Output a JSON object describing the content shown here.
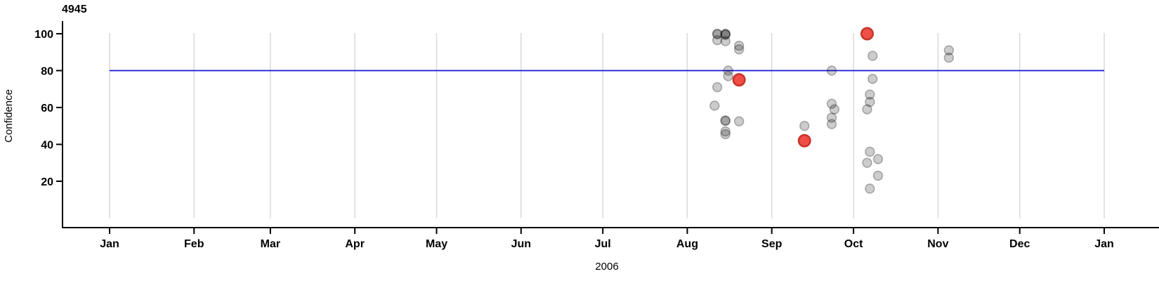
{
  "page": {
    "background": "#ffffff"
  },
  "chart_data": {
    "type": "scatter",
    "title": "4945",
    "xlabel": "2006",
    "ylabel": "Confidence",
    "x_axis": {
      "months": [
        {
          "label": "Jan",
          "day": 1
        },
        {
          "label": "Feb",
          "day": 32
        },
        {
          "label": "Mar",
          "day": 60
        },
        {
          "label": "Apr",
          "day": 91
        },
        {
          "label": "May",
          "day": 121
        },
        {
          "label": "Jun",
          "day": 152
        },
        {
          "label": "Jul",
          "day": 182
        },
        {
          "label": "Aug",
          "day": 213
        },
        {
          "label": "Sep",
          "day": 244
        },
        {
          "label": "Oct",
          "day": 274
        },
        {
          "label": "Nov",
          "day": 305
        },
        {
          "label": "Dec",
          "day": 335
        },
        {
          "label": "Jan",
          "day": 366
        }
      ],
      "range_days": [
        1,
        366
      ]
    },
    "y_axis": {
      "ticks": [
        20,
        40,
        60,
        80,
        100
      ],
      "ylim": [
        -5,
        106
      ],
      "grid_value_range": [
        0,
        100
      ]
    },
    "grid": {
      "color": "#d9d9d9",
      "orientation": "vertical"
    },
    "axis_color": "#000000",
    "reference_line": {
      "value": 80,
      "color": "#1414dd",
      "start_day": 1,
      "end_day": 366
    },
    "point_styles": {
      "gray": {
        "fill": "rgba(0,0,0,0.20)",
        "stroke": "rgba(0,0,0,0.28)",
        "radius": 6.4,
        "stroke_width": 1.6
      },
      "red": {
        "fill": "rgba(238,60,50,0.9)",
        "stroke": "#c8352b",
        "radius": 8.2,
        "stroke_width": 2.6
      }
    },
    "points": [
      {
        "date": "Aug 12",
        "day": 224,
        "value": 100,
        "color": "gray",
        "stack": 2
      },
      {
        "date": "Aug 15",
        "day": 227,
        "value": 100,
        "color": "gray",
        "stack": 3
      },
      {
        "date": "Aug 12",
        "day": 224,
        "value": 96.5,
        "color": "gray",
        "stack": 1
      },
      {
        "date": "Aug 15",
        "day": 227,
        "value": 96,
        "color": "gray",
        "stack": 1
      },
      {
        "date": "Aug 20",
        "day": 232,
        "value": 93.5,
        "color": "gray",
        "stack": 1
      },
      {
        "date": "Aug 20",
        "day": 232,
        "value": 91.5,
        "color": "gray",
        "stack": 1
      },
      {
        "date": "Aug 16",
        "day": 228,
        "value": 80,
        "color": "gray",
        "stack": 1
      },
      {
        "date": "Aug 16",
        "day": 228,
        "value": 77,
        "color": "gray",
        "stack": 1
      },
      {
        "date": "Aug 12",
        "day": 224,
        "value": 71,
        "color": "gray",
        "stack": 1
      },
      {
        "date": "Aug 11",
        "day": 223,
        "value": 61,
        "color": "gray",
        "stack": 1
      },
      {
        "date": "Aug 15",
        "day": 227,
        "value": 53,
        "color": "gray",
        "stack": 2
      },
      {
        "date": "Aug 20",
        "day": 232,
        "value": 52.5,
        "color": "gray",
        "stack": 1
      },
      {
        "date": "Aug 15",
        "day": 227,
        "value": 47,
        "color": "gray",
        "stack": 1
      },
      {
        "date": "Aug 15",
        "day": 227,
        "value": 45.5,
        "color": "gray",
        "stack": 1
      },
      {
        "date": "Sep 13",
        "day": 256,
        "value": 50,
        "color": "gray",
        "stack": 1
      },
      {
        "date": "Sep 23",
        "day": 266,
        "value": 80,
        "color": "gray",
        "stack": 1
      },
      {
        "date": "Sep 23",
        "day": 266,
        "value": 62,
        "color": "gray",
        "stack": 1
      },
      {
        "date": "Sep 24",
        "day": 267,
        "value": 59,
        "color": "gray",
        "stack": 1
      },
      {
        "date": "Sep 23",
        "day": 266,
        "value": 54.5,
        "color": "gray",
        "stack": 1
      },
      {
        "date": "Sep 23",
        "day": 266,
        "value": 51,
        "color": "gray",
        "stack": 1
      },
      {
        "date": "Oct 8",
        "day": 281,
        "value": 88,
        "color": "gray",
        "stack": 1
      },
      {
        "date": "Oct 8",
        "day": 281,
        "value": 75.5,
        "color": "gray",
        "stack": 1
      },
      {
        "date": "Oct 7",
        "day": 280,
        "value": 67,
        "color": "gray",
        "stack": 1
      },
      {
        "date": "Oct 7",
        "day": 280,
        "value": 63,
        "color": "gray",
        "stack": 1
      },
      {
        "date": "Oct 6",
        "day": 279,
        "value": 59,
        "color": "gray",
        "stack": 1
      },
      {
        "date": "Oct 7",
        "day": 280,
        "value": 36,
        "color": "gray",
        "stack": 1
      },
      {
        "date": "Oct 10",
        "day": 283,
        "value": 32,
        "color": "gray",
        "stack": 1
      },
      {
        "date": "Oct 6",
        "day": 279,
        "value": 30,
        "color": "gray",
        "stack": 1
      },
      {
        "date": "Oct 10",
        "day": 283,
        "value": 23,
        "color": "gray",
        "stack": 1
      },
      {
        "date": "Oct 7",
        "day": 280,
        "value": 16,
        "color": "gray",
        "stack": 1
      },
      {
        "date": "Nov 5",
        "day": 309,
        "value": 91,
        "color": "gray",
        "stack": 1
      },
      {
        "date": "Nov 5",
        "day": 309,
        "value": 87,
        "color": "gray",
        "stack": 1
      },
      {
        "date": "Aug 20",
        "day": 232,
        "value": 75,
        "color": "red",
        "stack": 1
      },
      {
        "date": "Sep 13",
        "day": 256,
        "value": 42,
        "color": "red",
        "stack": 1
      },
      {
        "date": "Oct 6",
        "day": 279,
        "value": 100,
        "color": "red",
        "stack": 1
      }
    ]
  }
}
